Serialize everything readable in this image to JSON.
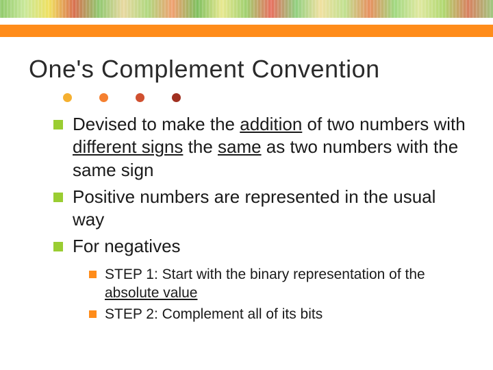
{
  "slide": {
    "title": "One's Complement Convention",
    "background_color": "#ffffff",
    "title_color": "#2a2a2a",
    "title_fontsize": 36
  },
  "decorative": {
    "orange_bar_color": "#ff8c1a",
    "dot_colors": [
      "#f5b030",
      "#f58030",
      "#d05030",
      "#a03020"
    ]
  },
  "bullets": [
    {
      "segments": [
        {
          "text": "Devised to make the ",
          "u": false
        },
        {
          "text": "addition",
          "u": true
        },
        {
          "text": " of two numbers with ",
          "u": false
        },
        {
          "text": "different signs",
          "u": true
        },
        {
          "text": " the ",
          "u": false
        },
        {
          "text": "same",
          "u": true
        },
        {
          "text": " as two numbers with the same sign",
          "u": false
        }
      ]
    },
    {
      "segments": [
        {
          "text": "Positive numbers are represented in the usual way",
          "u": false
        }
      ]
    },
    {
      "segments": [
        {
          "text": "For negatives",
          "u": false
        }
      ]
    }
  ],
  "sub_bullets": [
    {
      "segments": [
        {
          "text": "STEP 1: Start with the binary representation of the ",
          "u": false
        },
        {
          "text": "absolute value",
          "u": true
        }
      ]
    },
    {
      "segments": [
        {
          "text": "STEP 2: Complement all of its bits",
          "u": false
        }
      ]
    }
  ],
  "style": {
    "bullet_marker_color": "#9acd32",
    "sub_marker_color": "#ff8c1a",
    "bullet_fontsize": 26,
    "sub_fontsize": 21,
    "text_color": "#1a1a1a"
  }
}
